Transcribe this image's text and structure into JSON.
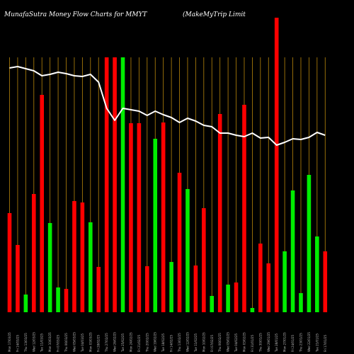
{
  "header": {
    "left": "MunafaSutra  Money Flow  Charts for MMYT",
    "right": "(MakeMyTrip Limit"
  },
  "colors": {
    "background": "#000000",
    "up": "#00ee00",
    "down": "#ff0000",
    "line": "#ffffff",
    "vgrid": "#b8860b"
  },
  "chart_data": {
    "type": "bar",
    "bar_unit": "relative money flow volume",
    "line_unit": "relative price",
    "x": [
      "Mon 17/03/25",
      "Fri 14/03/25",
      "Thu 13/03/25",
      "Wed 12/03/25",
      "Tue 11/03/25",
      "Mon 10/03/25",
      "Fri 07/03/25",
      "Thu 06/03/25",
      "Wed 05/03/25",
      "Tue 04/03/25",
      "Mon 03/03/25",
      "Fri 28/02/25",
      "Thu 27/02/25",
      "Wed 26/02/25",
      "Tue 25/02/25",
      "Mon 24/02/25",
      "Fri 21/02/25",
      "Thu 20/02/25",
      "Wed 19/02/25",
      "Tue 18/02/25",
      "Fri 14/02/25",
      "Thu 13/02/25",
      "Wed 12/02/25",
      "Tue 11/02/25",
      "Mon 10/02/25",
      "Fri 07/02/25",
      "Thu 06/02/25",
      "Wed 05/02/25",
      "Tue 04/02/25",
      "Mon 03/02/25",
      "Fri 31/01/25",
      "Thu 30/01/25",
      "Wed 29/01/25",
      "Tue 28/01/25",
      "Mon 27/01/25",
      "Fri 24/01/25",
      "Thu 23/01/25",
      "Wed 22/01/25",
      "Tue 21/01/25",
      "Fri 17/01/25"
    ],
    "bars": [
      {
        "value": 140,
        "color": "down"
      },
      {
        "value": 95,
        "color": "down"
      },
      {
        "value": 25,
        "color": "up"
      },
      {
        "value": 167,
        "color": "down"
      },
      {
        "value": 307,
        "color": "down"
      },
      {
        "value": 126,
        "color": "up"
      },
      {
        "value": 35,
        "color": "up"
      },
      {
        "value": 33,
        "color": "down"
      },
      {
        "value": 157,
        "color": "down"
      },
      {
        "value": 155,
        "color": "down"
      },
      {
        "value": 127,
        "color": "up"
      },
      {
        "value": 64,
        "color": "down"
      },
      {
        "value": 360,
        "color": "down"
      },
      {
        "value": 360,
        "color": "down"
      },
      {
        "value": 360,
        "color": "up"
      },
      {
        "value": 267,
        "color": "down"
      },
      {
        "value": 267,
        "color": "down"
      },
      {
        "value": 65,
        "color": "down"
      },
      {
        "value": 245,
        "color": "up"
      },
      {
        "value": 268,
        "color": "down"
      },
      {
        "value": 71,
        "color": "up"
      },
      {
        "value": 197,
        "color": "down"
      },
      {
        "value": 174,
        "color": "up"
      },
      {
        "value": 66,
        "color": "down"
      },
      {
        "value": 147,
        "color": "down"
      },
      {
        "value": 23,
        "color": "up"
      },
      {
        "value": 280,
        "color": "down"
      },
      {
        "value": 39,
        "color": "up"
      },
      {
        "value": 42,
        "color": "down"
      },
      {
        "value": 293,
        "color": "down"
      },
      {
        "value": 6,
        "color": "up"
      },
      {
        "value": 97,
        "color": "down"
      },
      {
        "value": 69,
        "color": "down"
      },
      {
        "value": 416,
        "color": "down"
      },
      {
        "value": 86,
        "color": "up"
      },
      {
        "value": 172,
        "color": "up"
      },
      {
        "value": 27,
        "color": "up"
      },
      {
        "value": 194,
        "color": "up"
      },
      {
        "value": 107,
        "color": "up"
      },
      {
        "value": 86,
        "color": "down"
      }
    ],
    "line": [
      345,
      347,
      344,
      341,
      334,
      336,
      339,
      337,
      334,
      333,
      336,
      325,
      288,
      271,
      288,
      286,
      284,
      278,
      284,
      279,
      275,
      268,
      274,
      270,
      264,
      262,
      253,
      253,
      250,
      248,
      253,
      246,
      247,
      236,
      240,
      245,
      244,
      247,
      254,
      250
    ],
    "ylim": [
      0,
      416
    ],
    "grid": {
      "vertical": true,
      "horizontal": false
    },
    "legend": "none"
  }
}
